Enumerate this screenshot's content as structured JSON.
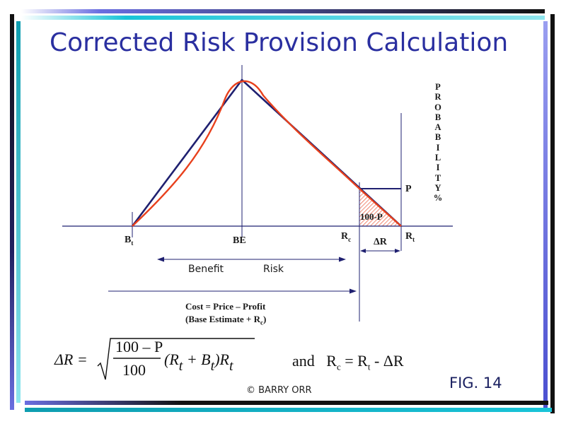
{
  "title": "Corrected Risk Provision Calculation",
  "labels": {
    "bt": "B",
    "bt_sub": "t",
    "be": "BE",
    "rc": "R",
    "rc_sub": "c",
    "rt": "R",
    "rt_sub": "t",
    "p": "P",
    "hundred_minus_p": "100-P",
    "delta_r": "ΔR",
    "benefit": "Benefit",
    "risk": "Risk",
    "cost_line1": "Cost = Price – Profit",
    "cost_line2": "(Base Estimate + R",
    "cost_line2_sub": "c",
    "cost_line2_end": ")"
  },
  "probability_axis": [
    "P",
    "R",
    "O",
    "B",
    "A",
    "B",
    "I",
    "L",
    "I",
    "T",
    "Y",
    "%"
  ],
  "formula": {
    "lhs": "ΔR =",
    "numerator": "100 – P",
    "denominator": "100",
    "rest": "(R",
    "rest_sub1": "t",
    "plus": " + B",
    "rest_sub2": "t",
    "close": ")R",
    "rest_sub3": "t"
  },
  "rc_equation": {
    "and": "and",
    "rc": "R",
    "rc_sub": "c",
    "eq": " = R",
    "rt_sub": "t",
    "minus": " - ΔR"
  },
  "fig_label": "FIG. 14",
  "copyright": "© BARRY ORR",
  "colors": {
    "title": "#2a2fa0",
    "navy_line": "#1f2070",
    "red_curve": "#e8401c",
    "hatch": "#e8401c",
    "border_dark": "#111111",
    "border_cyan": "#19c4d8",
    "border_blue": "#5a5fd0"
  }
}
